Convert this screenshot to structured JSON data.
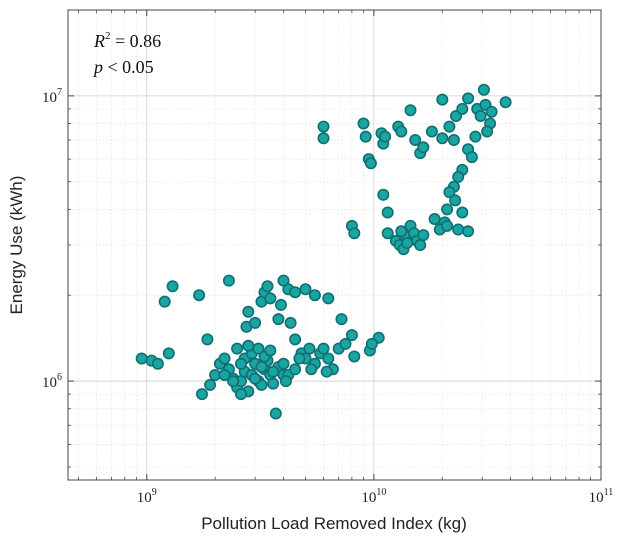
{
  "chart_data": {
    "type": "scatter",
    "xscale": "log",
    "yscale": "log",
    "xlabel": "Pollution Load Removed Index (kg)",
    "ylabel": "Energy Use (kWh)",
    "xlim": [
      450000000,
      100000000000
    ],
    "ylim": [
      450000,
      20000000
    ],
    "x_ticks": [
      {
        "value": 1000000000,
        "base": "10",
        "exp": "9"
      },
      {
        "value": 10000000000,
        "base": "10",
        "exp": "10"
      },
      {
        "value": 100000000000,
        "base": "10",
        "exp": "11"
      }
    ],
    "y_ticks": [
      {
        "value": 1000000,
        "base": "10",
        "exp": "6"
      },
      {
        "value": 10000000,
        "base": "10",
        "exp": "7"
      }
    ],
    "grid": true,
    "annotation": {
      "r2_symbol": "R",
      "r2_exp": "2",
      "r2_value": " = 0.86",
      "p_symbol": "p",
      "p_value": " < 0.05"
    },
    "marker_color": "#1aa5a2",
    "marker_edge": "#0f6f73",
    "points": [
      [
        1300000000.0,
        2150000.0
      ],
      [
        1200000000.0,
        1900000.0
      ],
      [
        1700000000.0,
        2000000.0
      ],
      [
        2300000000.0,
        2250000.0
      ],
      [
        1850000000.0,
        1400000.0
      ],
      [
        950000000.0,
        1200000.0
      ],
      [
        1050000000.0,
        1180000.0
      ],
      [
        1120000000.0,
        1150000.0
      ],
      [
        1250000000.0,
        1250000.0
      ],
      [
        1750000000.0,
        900000.0
      ],
      [
        1900000000.0,
        970000.0
      ],
      [
        2000000000.0,
        1050000.0
      ],
      [
        2100000000.0,
        1150000.0
      ],
      [
        2200000000.0,
        1200000.0
      ],
      [
        2300000000.0,
        1100000.0
      ],
      [
        2400000000.0,
        1020000.0
      ],
      [
        2500000000.0,
        950000.0
      ],
      [
        2600000000.0,
        1000000.0
      ],
      [
        2700000000.0,
        1080000.0
      ],
      [
        2800000000.0,
        920000.0
      ],
      [
        2900000000.0,
        1050000.0
      ],
      [
        3000000000.0,
        1150000.0
      ],
      [
        3100000000.0,
        1000000.0
      ],
      [
        3200000000.0,
        970000.0
      ],
      [
        3300000000.0,
        1100000.0
      ],
      [
        3400000000.0,
        1180000.0
      ],
      [
        3500000000.0,
        1050000.0
      ],
      [
        3600000000.0,
        980000.0
      ],
      [
        3800000000.0,
        1120000.0
      ],
      [
        4000000000.0,
        1050000.0
      ],
      [
        2700000000.0,
        1200000.0
      ],
      [
        2900000000.0,
        1250000.0
      ],
      [
        3100000000.0,
        1300000.0
      ],
      [
        3300000000.0,
        1220000.0
      ],
      [
        3500000000.0,
        1280000.0
      ],
      [
        2500000000.0,
        1300000.0
      ],
      [
        2200000000.0,
        1050000.0
      ],
      [
        2600000000.0,
        1150000.0
      ],
      [
        3000000000.0,
        1020000.0
      ],
      [
        3200000000.0,
        1120000.0
      ],
      [
        3700000000.0,
        770000.0
      ],
      [
        2800000000.0,
        1330000.0
      ],
      [
        2750000000.0,
        1550000.0
      ],
      [
        2800000000.0,
        1750000.0
      ],
      [
        3000000000.0,
        1600000.0
      ],
      [
        3200000000.0,
        1900000.0
      ],
      [
        3300000000.0,
        2050000.0
      ],
      [
        3500000000.0,
        1950000.0
      ],
      [
        3900000000.0,
        1850000.0
      ],
      [
        4200000000.0,
        2100000.0
      ],
      [
        4000000000.0,
        2250000.0
      ],
      [
        4500000000.0,
        2050000.0
      ],
      [
        5000000000.0,
        2100000.0
      ],
      [
        5500000000.0,
        2000000.0
      ],
      [
        6300000000.0,
        1950000.0
      ],
      [
        3400000000.0,
        2150000.0
      ],
      [
        3800000000.0,
        1650000.0
      ],
      [
        4300000000.0,
        1600000.0
      ],
      [
        4500000000.0,
        1400000.0
      ],
      [
        4800000000.0,
        1250000.0
      ],
      [
        5000000000.0,
        1200000.0
      ],
      [
        5200000000.0,
        1300000.0
      ],
      [
        5500000000.0,
        1150000.0
      ],
      [
        5800000000.0,
        1250000.0
      ],
      [
        6000000000.0,
        1300000.0
      ],
      [
        6300000000.0,
        1200000.0
      ],
      [
        6600000000.0,
        1100000.0
      ],
      [
        7000000000.0,
        1300000.0
      ],
      [
        7500000000.0,
        1350000.0
      ],
      [
        8000000000.0,
        1450000.0
      ],
      [
        7200000000.0,
        1650000.0
      ],
      [
        8200000000.0,
        1220000.0
      ],
      [
        9600000000.0,
        1280000.0
      ],
      [
        10500000000.0,
        1420000.0
      ],
      [
        9800000000.0,
        1350000.0
      ],
      [
        4000000000.0,
        1150000.0
      ],
      [
        4200000000.0,
        1050000.0
      ],
      [
        4500000000.0,
        1100000.0
      ],
      [
        4700000000.0,
        1200000.0
      ],
      [
        5300000000.0,
        1100000.0
      ],
      [
        2400000000.0,
        1000000.0
      ],
      [
        2600000000.0,
        900000.0
      ],
      [
        3600000000.0,
        1080000.0
      ],
      [
        4100000000.0,
        1000000.0
      ],
      [
        6200000000.0,
        1080000.0
      ],
      [
        6000000000.0,
        7800000.0
      ],
      [
        6000000000.0,
        7100000.0
      ],
      [
        9000000000.0,
        8000000.0
      ],
      [
        9200000000.0,
        7200000.0
      ],
      [
        9500000000.0,
        6000000.0
      ],
      [
        9700000000.0,
        5800000.0
      ],
      [
        10800000000.0,
        7400000.0
      ],
      [
        11000000000.0,
        6800000.0
      ],
      [
        11200000000.0,
        7200000.0
      ],
      [
        12800000000.0,
        7800000.0
      ],
      [
        13200000000.0,
        7500000.0
      ],
      [
        14500000000.0,
        8900000.0
      ],
      [
        15200000000.0,
        7000000.0
      ],
      [
        16000000000.0,
        6300000.0
      ],
      [
        16500000000.0,
        6600000.0
      ],
      [
        18000000000.0,
        7500000.0
      ],
      [
        20000000000.0,
        7100000.0
      ],
      [
        21500000000.0,
        7800000.0
      ],
      [
        22500000000.0,
        7000000.0
      ],
      [
        20000000000.0,
        9700000.0
      ],
      [
        23000000000.0,
        8500000.0
      ],
      [
        24500000000.0,
        9000000.0
      ],
      [
        26000000000.0,
        9800000.0
      ],
      [
        28500000000.0,
        9000000.0
      ],
      [
        29500000000.0,
        8500000.0
      ],
      [
        30500000000.0,
        10500000.0
      ],
      [
        31000000000.0,
        9300000.0
      ],
      [
        32500000000.0,
        8000000.0
      ],
      [
        33000000000.0,
        8800000.0
      ],
      [
        31500000000.0,
        7500000.0
      ],
      [
        38000000000.0,
        9500000.0
      ],
      [
        28000000000.0,
        7200000.0
      ],
      [
        26000000000.0,
        6500000.0
      ],
      [
        27000000000.0,
        6100000.0
      ],
      [
        24500000000.0,
        5500000.0
      ],
      [
        23500000000.0,
        5200000.0
      ],
      [
        22500000000.0,
        4800000.0
      ],
      [
        21500000000.0,
        4600000.0
      ],
      [
        22800000000.0,
        4300000.0
      ],
      [
        21000000000.0,
        4000000.0
      ],
      [
        20500000000.0,
        3600000.0
      ],
      [
        19500000000.0,
        3400000.0
      ],
      [
        18500000000.0,
        3700000.0
      ],
      [
        21000000000.0,
        3500000.0
      ],
      [
        23500000000.0,
        3400000.0
      ],
      [
        26000000000.0,
        3350000.0
      ],
      [
        24500000000.0,
        3900000.0
      ],
      [
        11000000000.0,
        4500000.0
      ],
      [
        11500000000.0,
        3900000.0
      ],
      [
        8000000000.0,
        3500000.0
      ],
      [
        8200000000.0,
        3300000.0
      ],
      [
        11500000000.0,
        3300000.0
      ],
      [
        12500000000.0,
        3100000.0
      ],
      [
        13000000000.0,
        3000000.0
      ],
      [
        13500000000.0,
        2900000.0
      ],
      [
        14000000000.0,
        3200000.0
      ],
      [
        14500000000.0,
        3500000.0
      ],
      [
        15000000000.0,
        3300000.0
      ],
      [
        15500000000.0,
        3100000.0
      ],
      [
        16000000000.0,
        3000000.0
      ],
      [
        16500000000.0,
        3250000.0
      ],
      [
        14000000000.0,
        3050000.0
      ],
      [
        13200000000.0,
        3350000.0
      ]
    ]
  }
}
